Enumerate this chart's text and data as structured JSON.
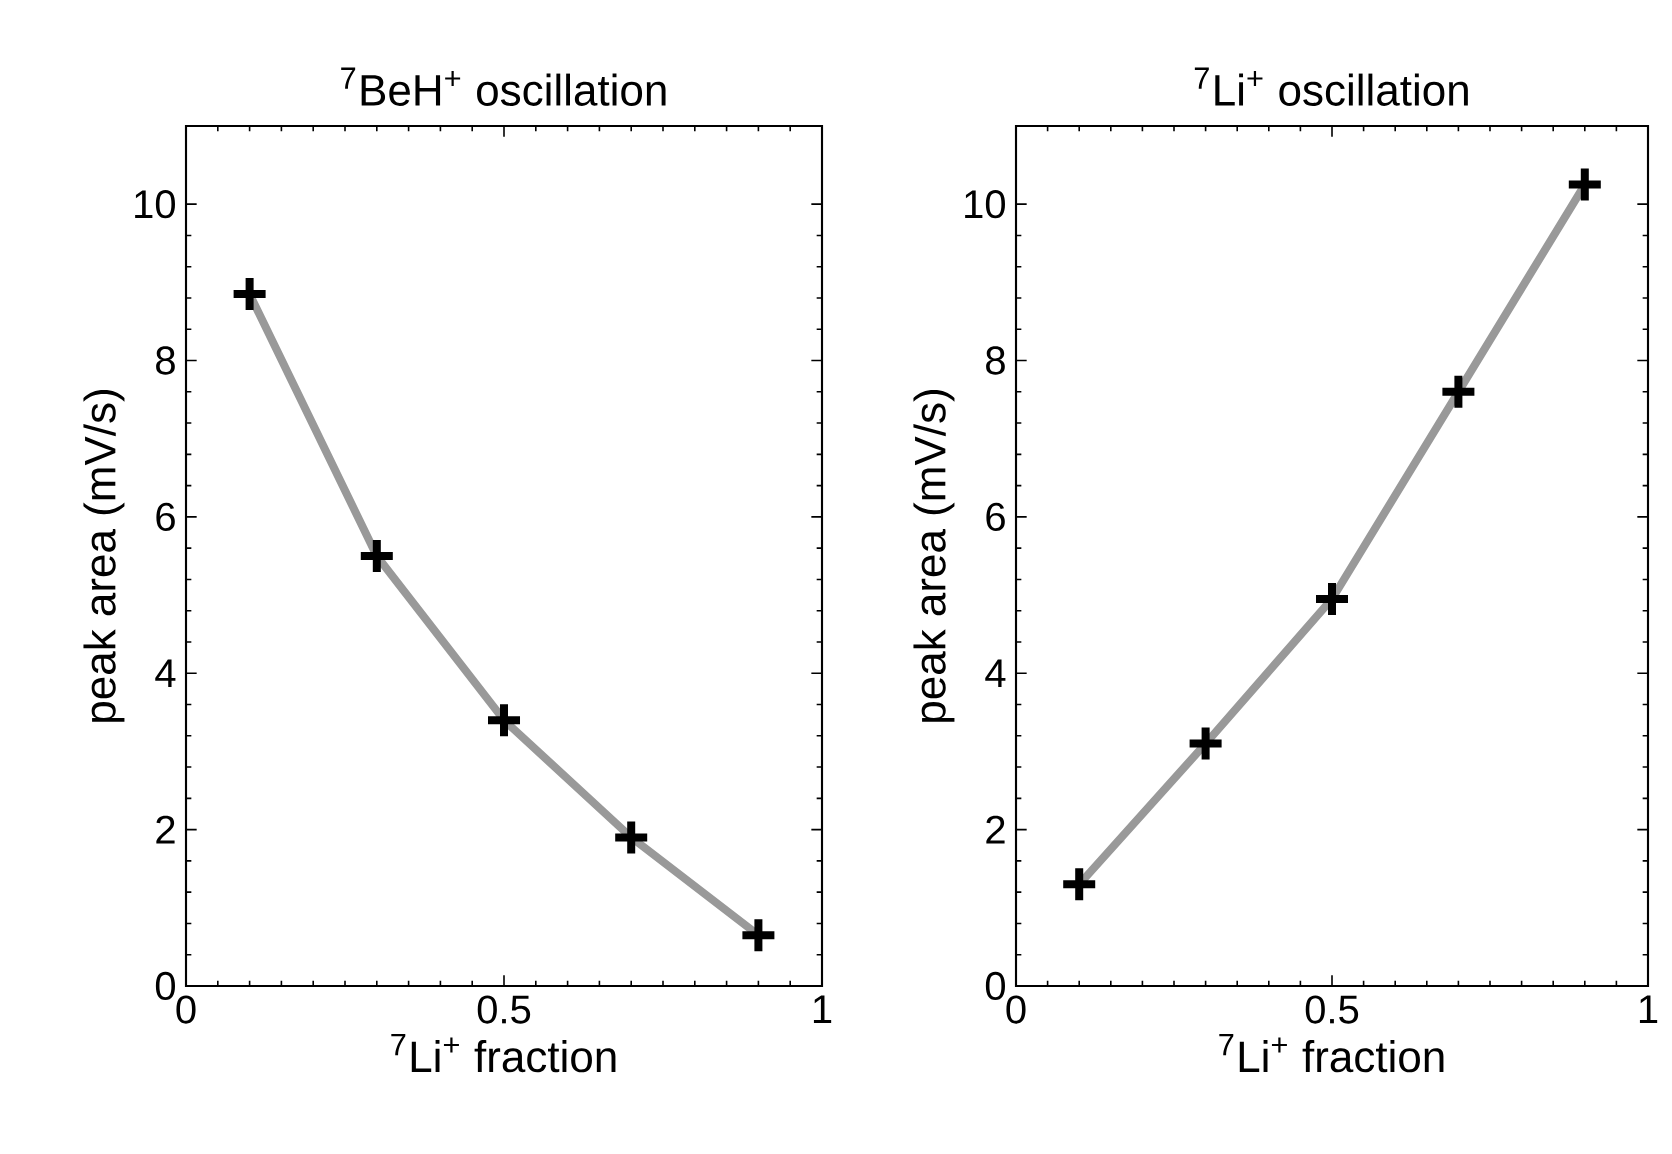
{
  "chart_data": [
    {
      "type": "line",
      "title": "$^{7}$BeH$^{+}$ oscillation",
      "xlabel": "$^{7}$Li$^{+}$ fraction",
      "ylabel": "peak area (mV/s)",
      "x": [
        0.1,
        0.3,
        0.5,
        0.7,
        0.9
      ],
      "values": [
        8.85,
        5.5,
        3.4,
        1.9,
        0.65
      ],
      "color": "#999999",
      "marker": "cross",
      "xlim": [
        0,
        1
      ],
      "ylim": [
        0,
        11
      ],
      "xticks": [
        0,
        0.5,
        1
      ],
      "yticks": [
        0,
        2,
        4,
        6,
        8,
        10
      ]
    },
    {
      "type": "line",
      "title": "$^{7}$Li$^{+}$ oscillation",
      "xlabel": "$^{7}$Li$^{+}$ fraction",
      "ylabel": "peak area (mV/s)",
      "x": [
        0.1,
        0.3,
        0.5,
        0.7,
        0.9
      ],
      "values": [
        1.3,
        3.1,
        4.95,
        7.6,
        10.25
      ],
      "color": "#999999",
      "marker": "cross",
      "xlim": [
        0,
        1
      ],
      "ylim": [
        0,
        11
      ],
      "xticks": [
        0,
        0.5,
        1
      ],
      "yticks": [
        0,
        2,
        4,
        6,
        8,
        10
      ]
    }
  ]
}
